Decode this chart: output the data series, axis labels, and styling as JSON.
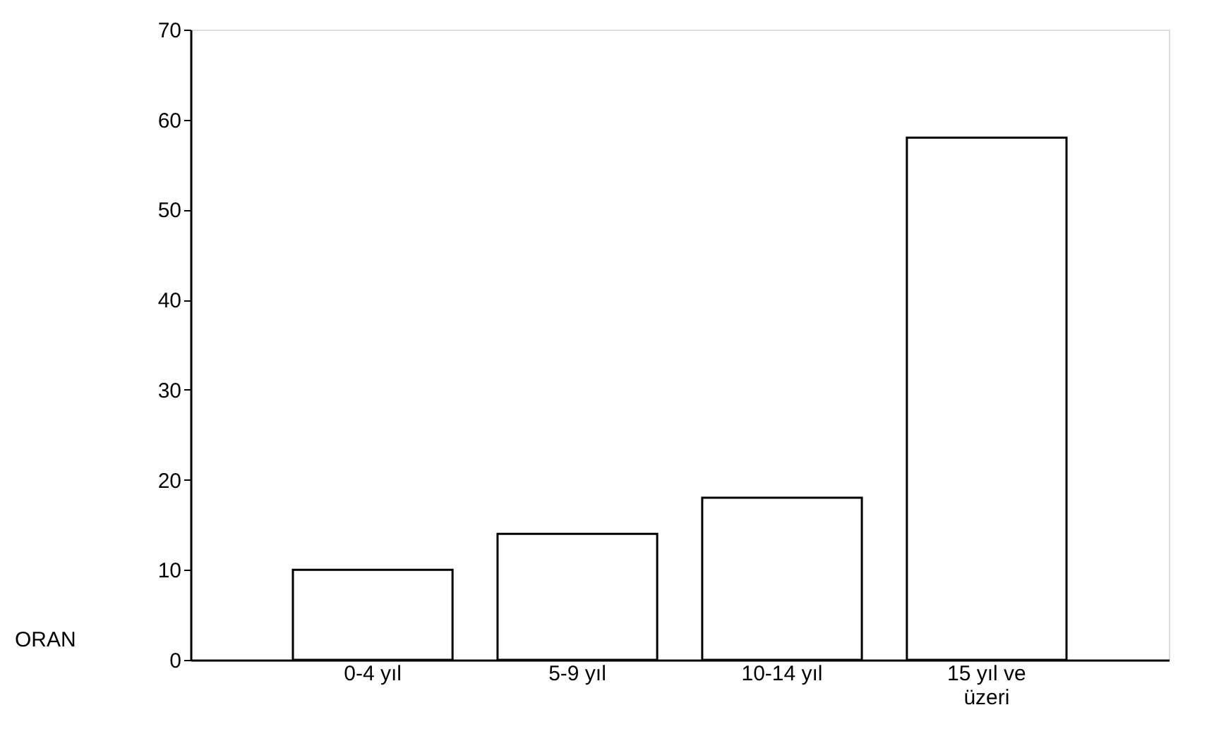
{
  "chart_data": {
    "type": "bar",
    "ylabel": "ORAN",
    "categories": [
      "0-4 yıl",
      "5-9 yıl",
      "10-14 yıl",
      "15 yıl ve\nüzeri"
    ],
    "values": [
      10,
      14,
      18,
      58
    ],
    "color": "#ffffff",
    "ylim": [
      0,
      70
    ],
    "yticks": [
      0,
      10,
      20,
      30,
      40,
      50,
      60,
      70
    ],
    "grid": false
  }
}
